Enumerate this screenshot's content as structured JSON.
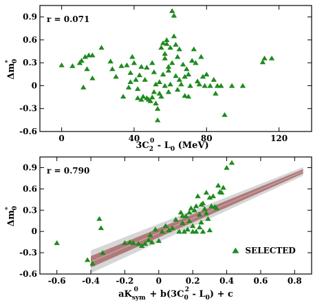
{
  "colors": {
    "marker": "#1f8a1f",
    "band_outer": "#d6d6d6",
    "band_inner": "#b07a7a",
    "fit_line": "#c9a0a0"
  },
  "chart_data": [
    {
      "type": "scatter",
      "annotation": "r = 0.071",
      "ylabel": "Δm*₀",
      "xlabel": "3C₂⁰ - L₀ (MeV)",
      "xlim": [
        -12,
        138
      ],
      "ylim": [
        -0.6,
        1.05
      ],
      "xticks": [
        0,
        40,
        80,
        120
      ],
      "yticks": [
        -0.6,
        -0.3,
        0,
        0.3,
        0.6,
        0.9
      ],
      "xtick_labels": [
        "0",
        "40",
        "80",
        "120"
      ],
      "ytick_labels": [
        "-0.6",
        "-0.3",
        "0",
        "0.3",
        "0.6",
        "0.9"
      ],
      "points": [
        [
          0,
          0.27
        ],
        [
          6,
          0.26
        ],
        [
          10,
          0.3
        ],
        [
          11,
          0.33
        ],
        [
          13,
          0.38
        ],
        [
          14,
          0.22
        ],
        [
          15,
          0.4
        ],
        [
          17,
          0.4
        ],
        [
          12,
          -0.02
        ],
        [
          17,
          0.1
        ],
        [
          22,
          0.5
        ],
        [
          27,
          0.32
        ],
        [
          28,
          0.22
        ],
        [
          30,
          0.12
        ],
        [
          33,
          0.26
        ],
        [
          34,
          -0.14
        ],
        [
          36,
          0.27
        ],
        [
          37,
          -0.02
        ],
        [
          38,
          0.05
        ],
        [
          38,
          0.17
        ],
        [
          39,
          0.38
        ],
        [
          40,
          0.3
        ],
        [
          41,
          0.08
        ],
        [
          42,
          -0.04
        ],
        [
          42,
          -0.16
        ],
        [
          43,
          0.14
        ],
        [
          44,
          0.25
        ],
        [
          44,
          -0.18
        ],
        [
          45,
          -0.14
        ],
        [
          46,
          0.08
        ],
        [
          47,
          0.24
        ],
        [
          47,
          -0.16
        ],
        [
          48,
          -0.18
        ],
        [
          49,
          -0.2
        ],
        [
          50,
          -0.15
        ],
        [
          50,
          0.3
        ],
        [
          51,
          0.18
        ],
        [
          51,
          -0.08
        ],
        [
          52,
          0.02
        ],
        [
          52,
          -0.23
        ],
        [
          53,
          -0.3
        ],
        [
          53,
          -0.45
        ],
        [
          54,
          -0.1
        ],
        [
          54,
          0.05
        ],
        [
          55,
          -0.14
        ],
        [
          55,
          0.5
        ],
        [
          56,
          0.56
        ],
        [
          56,
          0.15
        ],
        [
          57,
          0.36
        ],
        [
          57,
          0.0
        ],
        [
          58,
          0.55
        ],
        [
          58,
          0.6
        ],
        [
          59,
          0.2
        ],
        [
          59,
          -0.08
        ],
        [
          60,
          0.02
        ],
        [
          60,
          0.5
        ],
        [
          61,
          0.98
        ],
        [
          62,
          0.65
        ],
        [
          62,
          0.92
        ],
        [
          63,
          0.54
        ],
        [
          64,
          -0.05
        ],
        [
          64,
          0.38
        ],
        [
          65,
          0.48
        ],
        [
          65,
          0.08
        ],
        [
          66,
          0.02
        ],
        [
          67,
          0.28
        ],
        [
          68,
          0.12
        ],
        [
          68,
          -0.13
        ],
        [
          69,
          0.22
        ],
        [
          70,
          0.15
        ],
        [
          70,
          -0.14
        ],
        [
          71,
          0.0
        ],
        [
          72,
          0.33
        ],
        [
          73,
          0.48
        ],
        [
          74,
          0.3
        ],
        [
          75,
          0.06
        ],
        [
          76,
          0.02
        ],
        [
          77,
          0.38
        ],
        [
          78,
          0.12
        ],
        [
          79,
          0.0
        ],
        [
          80,
          0.15
        ],
        [
          82,
          0.0
        ],
        [
          84,
          0.08
        ],
        [
          85,
          -0.1
        ],
        [
          86,
          0.0
        ],
        [
          88,
          0.0
        ],
        [
          90,
          -0.38
        ],
        [
          94,
          0.0
        ],
        [
          100,
          0.0
        ],
        [
          111,
          0.31
        ],
        [
          112,
          0.36
        ],
        [
          116,
          0.36
        ],
        [
          57,
          0.42
        ],
        [
          59,
          0.25
        ],
        [
          61,
          0.3
        ],
        [
          63,
          0.13
        ]
      ]
    },
    {
      "type": "scatter",
      "annotation": "r = 0.790",
      "ylabel": "Δm*₀",
      "xlabel": "aK⁰sym + b(3C⁰₂ - L₀) + c",
      "legend": "SELECTED",
      "legend_position": "bottom-right",
      "xlim": [
        -0.7,
        0.9
      ],
      "ylim": [
        -0.6,
        1.05
      ],
      "xticks": [
        -0.6,
        -0.4,
        -0.2,
        0,
        0.2,
        0.4,
        0.6,
        0.8
      ],
      "yticks": [
        -0.6,
        -0.3,
        0,
        0.3,
        0.6,
        0.9
      ],
      "xtick_labels": [
        "-0.6",
        "-0.4",
        "-0.2",
        "0",
        "0.2",
        "0.4",
        "0.6",
        "0.8"
      ],
      "ytick_labels": [
        "-0.6",
        "-0.3",
        "0",
        "0.3",
        "0.6",
        "0.9"
      ],
      "fit": {
        "slope": 1.02,
        "intercept": -0.02,
        "x_from": -0.4,
        "x_to": 0.85,
        "inner_halfwidth": 0.05,
        "outer_halfwidth": 0.1
      },
      "points": [
        [
          -0.6,
          -0.16
        ],
        [
          -0.42,
          -0.4
        ],
        [
          -0.39,
          -0.45
        ],
        [
          -0.35,
          0.18
        ],
        [
          -0.34,
          0.05
        ],
        [
          -0.33,
          -0.3
        ],
        [
          -0.2,
          -0.16
        ],
        [
          -0.17,
          -0.15
        ],
        [
          -0.15,
          -0.16
        ],
        [
          -0.12,
          -0.17
        ],
        [
          -0.1,
          -0.2
        ],
        [
          -0.08,
          -0.17
        ],
        [
          -0.06,
          -0.12
        ],
        [
          -0.05,
          -0.05
        ],
        [
          -0.04,
          -0.15
        ],
        [
          -0.02,
          0.03
        ],
        [
          0.0,
          -0.13
        ],
        [
          0.02,
          0.0
        ],
        [
          0.04,
          0.08
        ],
        [
          0.06,
          0.02
        ],
        [
          0.08,
          0.05
        ],
        [
          0.1,
          0.17
        ],
        [
          0.12,
          0.0
        ],
        [
          0.13,
          0.27
        ],
        [
          0.14,
          0.12
        ],
        [
          0.15,
          0.0
        ],
        [
          0.16,
          0.22
        ],
        [
          0.17,
          0.03
        ],
        [
          0.18,
          0.15
        ],
        [
          0.19,
          0.33
        ],
        [
          0.2,
          0.0
        ],
        [
          0.2,
          0.08
        ],
        [
          0.21,
          0.3
        ],
        [
          0.22,
          0.36
        ],
        [
          0.22,
          0.0
        ],
        [
          0.23,
          0.5
        ],
        [
          0.24,
          0.24
        ],
        [
          0.24,
          0.06
        ],
        [
          0.25,
          0.13
        ],
        [
          0.25,
          0.38
        ],
        [
          0.26,
          0.0
        ],
        [
          0.27,
          0.32
        ],
        [
          0.28,
          0.26
        ],
        [
          0.28,
          0.55
        ],
        [
          0.29,
          0.18
        ],
        [
          0.3,
          0.48
        ],
        [
          0.3,
          0.02
        ],
        [
          0.31,
          0.36
        ],
        [
          0.32,
          0.5
        ],
        [
          0.33,
          0.35
        ],
        [
          0.34,
          0.33
        ],
        [
          0.35,
          0.65
        ],
        [
          0.36,
          0.56
        ],
        [
          0.37,
          0.55
        ],
        [
          0.38,
          0.62
        ],
        [
          0.4,
          0.9
        ],
        [
          0.43,
          0.97
        ],
        [
          0.26,
          0.4
        ],
        [
          0.18,
          0.27
        ],
        [
          0.14,
          0.22
        ]
      ]
    }
  ]
}
